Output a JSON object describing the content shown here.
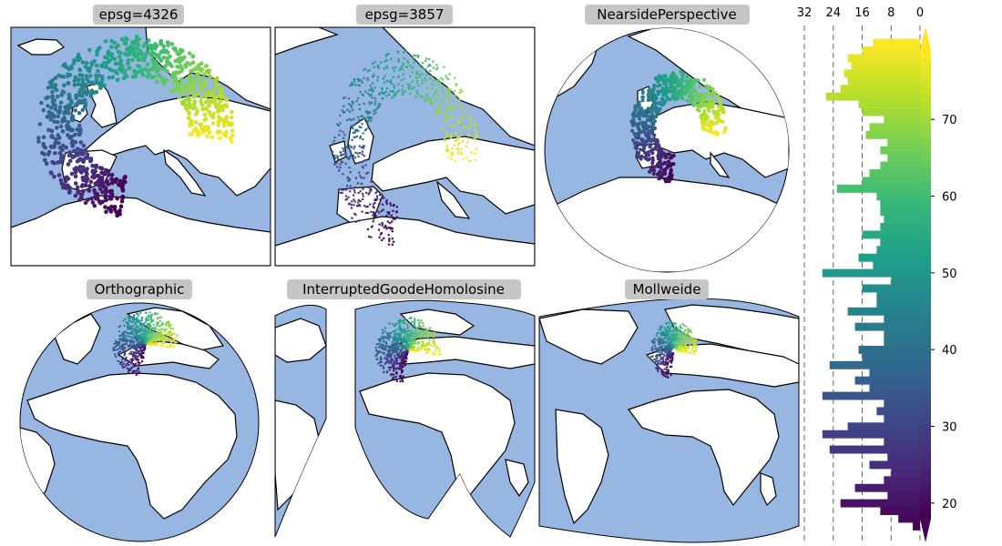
{
  "colors": {
    "ocean": "#97b6e1",
    "land": "#ffffff",
    "coast": "#000000",
    "title_box": "#c6c6c6",
    "colormap": [
      "#440154",
      "#482878",
      "#3e4989",
      "#31688e",
      "#26828e",
      "#1f9e89",
      "#35b779",
      "#6ece58",
      "#b5de2b",
      "#fde725"
    ]
  },
  "panels": [
    {
      "title": "epsg=4326",
      "type": "rect"
    },
    {
      "title": "epsg=3857",
      "type": "rect"
    },
    {
      "title": "NearsidePerspective",
      "type": "disc"
    },
    {
      "title": "Orthographic",
      "type": "disc"
    },
    {
      "title": "InterruptedGoodeHomolosine",
      "type": "goode"
    },
    {
      "title": "Mollweide",
      "type": "mollweide"
    }
  ],
  "chart_data": {
    "type": "bar",
    "orientation": "horizontal",
    "colormap": "viridis",
    "colorbar": true,
    "x_axis": "inverted",
    "xticks": [
      "32",
      "24",
      "16",
      "8",
      "0"
    ],
    "xlim": [
      32,
      0
    ],
    "yticks": [
      "20",
      "30",
      "40",
      "50",
      "60",
      "70"
    ],
    "ylim": [
      15,
      82
    ],
    "grid": "vertical dashed",
    "bins": [
      17,
      18,
      19,
      20,
      21,
      22,
      23,
      24,
      25,
      26,
      27,
      28,
      29,
      30,
      31,
      32,
      33,
      34,
      35,
      36,
      37,
      38,
      39,
      40,
      41,
      42,
      43,
      44,
      45,
      46,
      47,
      48,
      49,
      50,
      51,
      52,
      53,
      54,
      55,
      56,
      57,
      58,
      59,
      60,
      61,
      62,
      63,
      64,
      65,
      66,
      67,
      68,
      69,
      70,
      71,
      72,
      73,
      74,
      75,
      76,
      77,
      78,
      79,
      80
    ],
    "values": [
      2,
      6,
      11,
      22,
      9,
      18,
      10,
      8,
      14,
      9,
      25,
      10,
      27,
      20,
      10,
      12,
      10,
      27,
      14,
      18,
      14,
      25,
      16,
      17,
      10,
      10,
      18,
      10,
      20,
      12,
      12,
      16,
      8,
      27,
      13,
      17,
      12,
      11,
      16,
      11,
      10,
      11,
      11,
      12,
      23,
      16,
      14,
      11,
      9,
      11,
      9,
      15,
      14,
      10,
      16,
      17,
      26,
      22,
      20,
      21,
      19,
      20,
      16,
      13
    ]
  }
}
